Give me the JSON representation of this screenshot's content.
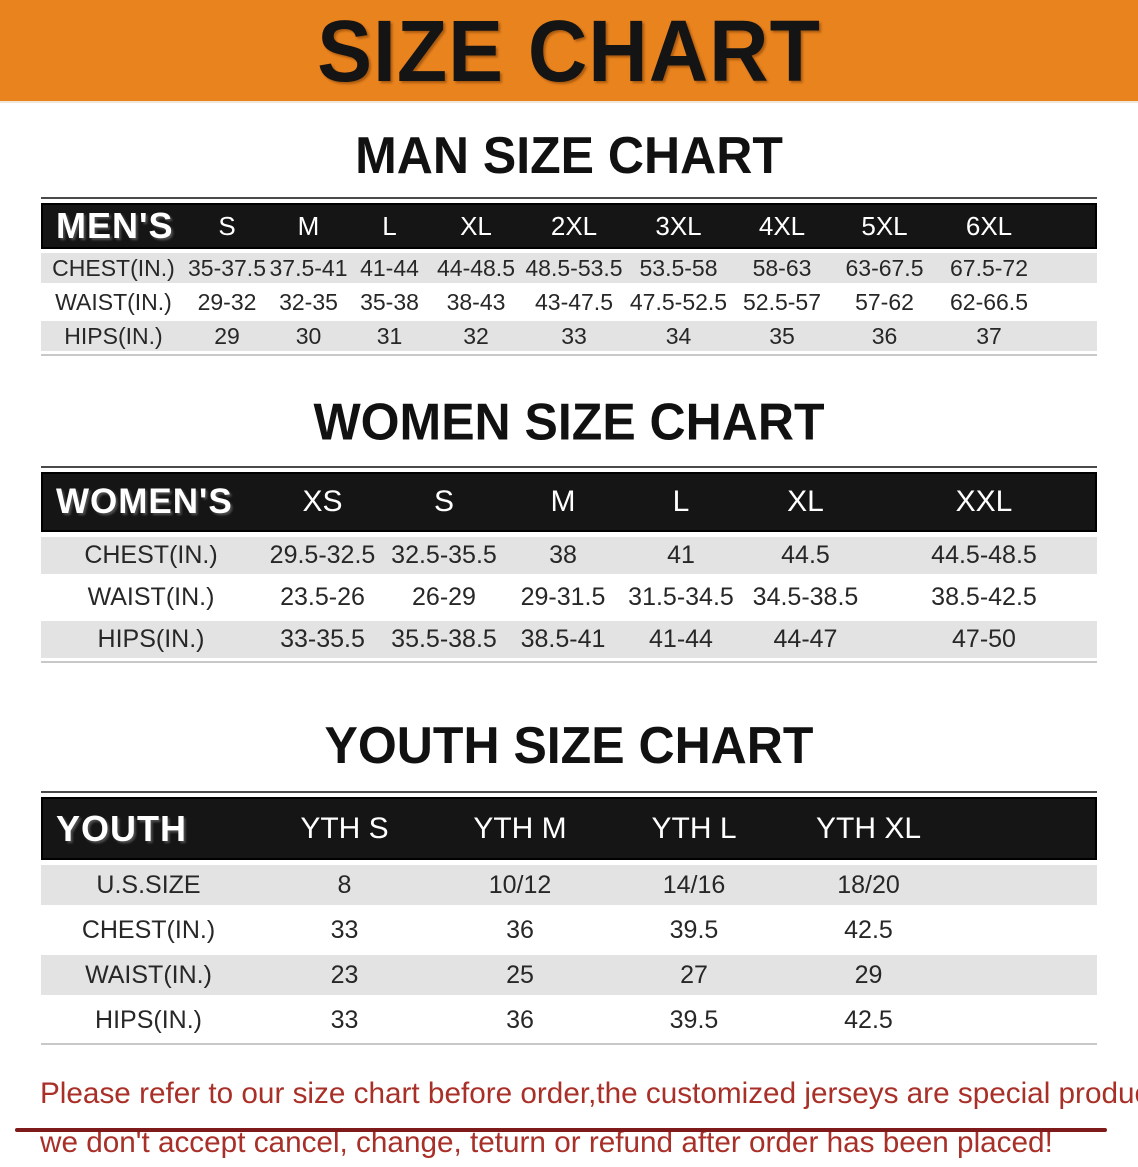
{
  "banner": {
    "title": "SIZE CHART"
  },
  "colors": {
    "banner_bg": "#E9831D",
    "header_bg": "#151515",
    "row_gray": "#E3E3E3",
    "text_dark": "#272727",
    "footer_red": "#A93028",
    "rule_dark": "#4A4A4A",
    "rule_light": "#C8C8C8",
    "crop_bar": "#7E1A1A"
  },
  "men": {
    "heading": "MAN SIZE CHART",
    "corner": "MEN'S",
    "sizes": [
      "S",
      "M",
      "L",
      "XL",
      "2XL",
      "3XL",
      "4XL",
      "5XL",
      "6XL"
    ],
    "rows": [
      {
        "label": "CHEST(IN.)",
        "values": [
          "35-37.5",
          "37.5-41",
          "41-44",
          "44-48.5",
          "48.5-53.5",
          "53.5-58",
          "58-63",
          "63-67.5",
          "67.5-72"
        ]
      },
      {
        "label": "WAIST(IN.)",
        "values": [
          "29-32",
          "32-35",
          "35-38",
          "38-43",
          "43-47.5",
          "47.5-52.5",
          "52.5-57",
          "57-62",
          "62-66.5"
        ]
      },
      {
        "label": "HIPS(IN.)",
        "values": [
          "29",
          "30",
          "31",
          "32",
          "33",
          "34",
          "35",
          "36",
          "37"
        ]
      }
    ]
  },
  "women": {
    "heading": "WOMEN SIZE CHART",
    "corner": "WOMEN'S",
    "sizes": [
      "XS",
      "S",
      "M",
      "L",
      "XL",
      "XXL"
    ],
    "rows": [
      {
        "label": "CHEST(IN.)",
        "values": [
          "29.5-32.5",
          "32.5-35.5",
          "38",
          "41",
          "44.5",
          "44.5-48.5"
        ]
      },
      {
        "label": "WAIST(IN.)",
        "values": [
          "23.5-26",
          "26-29",
          "29-31.5",
          "31.5-34.5",
          "34.5-38.5",
          "38.5-42.5"
        ]
      },
      {
        "label": "HIPS(IN.)",
        "values": [
          "33-35.5",
          "35.5-38.5",
          "38.5-41",
          "41-44",
          "44-47",
          "47-50"
        ]
      }
    ]
  },
  "youth": {
    "heading": "YOUTH SIZE CHART",
    "corner": "YOUTH",
    "sizes": [
      "YTH S",
      "YTH M",
      "YTH L",
      "YTH XL"
    ],
    "rows": [
      {
        "label": "U.S.SIZE",
        "values": [
          "8",
          "10/12",
          "14/16",
          "18/20"
        ]
      },
      {
        "label": "CHEST(IN.)",
        "values": [
          "33",
          "36",
          "39.5",
          "42.5"
        ]
      },
      {
        "label": "WAIST(IN.)",
        "values": [
          "23",
          "25",
          "27",
          "29"
        ]
      },
      {
        "label": "HIPS(IN.)",
        "values": [
          "33",
          "36",
          "39.5",
          "42.5"
        ]
      }
    ]
  },
  "footer": {
    "line1": "Please refer to our size chart before order,the customized jerseys are special products,",
    "line2": "we don't accept cancel, change, teturn or refund after order has been placed!"
  }
}
